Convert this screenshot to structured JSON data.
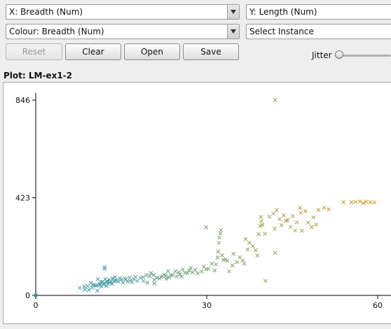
{
  "controls": {
    "x_axis_select": "X: Breadth (Num)",
    "y_axis_select": "Y: Length (Num)",
    "colour_select": "Colour: Breadth (Num)",
    "instance_select": "Select Instance",
    "reset_label": "Reset",
    "clear_label": "Clear",
    "open_label": "Open",
    "save_label": "Save",
    "jitter_label": "Jitter",
    "jitter_value": 0
  },
  "plot_title": "Plot: LM-ex1-2",
  "colors": {
    "low": "#2a9fc6",
    "high": "#d4a020"
  },
  "chart_data": {
    "type": "scatter",
    "xlim": [
      0,
      60
    ],
    "ylim": [
      0,
      846
    ],
    "x_ticks": [
      "0",
      "30",
      "60"
    ],
    "y_ticks": [
      "0",
      "423",
      "846"
    ],
    "marker": "x",
    "points": [
      [
        0,
        0
      ],
      [
        7.7,
        32
      ],
      [
        8.5,
        38
      ],
      [
        8.6,
        25
      ],
      [
        9.1,
        40
      ],
      [
        9.3,
        24
      ],
      [
        9.7,
        55
      ],
      [
        9.9,
        34
      ],
      [
        10,
        45
      ],
      [
        10.3,
        44
      ],
      [
        10.6,
        42
      ],
      [
        10.8,
        20
      ],
      [
        10.9,
        70
      ],
      [
        10.9,
        44
      ],
      [
        11.2,
        54
      ],
      [
        11.3,
        47
      ],
      [
        11.5,
        38
      ],
      [
        11.6,
        57
      ],
      [
        11.7,
        60
      ],
      [
        11.9,
        46
      ],
      [
        12,
        53
      ],
      [
        12.1,
        123
      ],
      [
        12.1,
        115
      ],
      [
        12.2,
        70
      ],
      [
        12.4,
        40
      ],
      [
        12.5,
        62
      ],
      [
        12.6,
        58
      ],
      [
        12.7,
        51
      ],
      [
        12.9,
        68
      ],
      [
        13,
        55
      ],
      [
        13.2,
        61
      ],
      [
        13.4,
        50
      ],
      [
        13.5,
        74
      ],
      [
        13.7,
        62
      ],
      [
        13.9,
        80
      ],
      [
        14,
        63
      ],
      [
        14.2,
        66
      ],
      [
        14.5,
        60
      ],
      [
        14.8,
        75
      ],
      [
        15,
        68
      ],
      [
        15.3,
        55
      ],
      [
        15.6,
        73
      ],
      [
        15.8,
        70
      ],
      [
        16.1,
        60
      ],
      [
        16.5,
        77
      ],
      [
        16.6,
        63
      ],
      [
        16.9,
        57
      ],
      [
        17.2,
        71
      ],
      [
        17.5,
        79
      ],
      [
        17.8,
        62
      ],
      [
        18.4,
        76
      ],
      [
        18.8,
        79
      ],
      [
        18.9,
        62
      ],
      [
        19.4,
        88
      ],
      [
        19.6,
        55
      ],
      [
        20,
        83
      ],
      [
        20.2,
        97
      ],
      [
        20.7,
        88
      ],
      [
        20.8,
        68
      ],
      [
        20.8,
        52
      ],
      [
        21.3,
        77
      ],
      [
        21.7,
        73
      ],
      [
        22,
        79
      ],
      [
        22.2,
        83
      ],
      [
        22.5,
        90
      ],
      [
        22.8,
        86
      ],
      [
        22.9,
        72
      ],
      [
        23.2,
        105
      ],
      [
        23.4,
        78
      ],
      [
        23.7,
        87
      ],
      [
        24,
        88
      ],
      [
        24.5,
        104
      ],
      [
        24.7,
        82
      ],
      [
        25.1,
        101
      ],
      [
        25.3,
        91
      ],
      [
        25.6,
        81
      ],
      [
        25.8,
        112
      ],
      [
        26.2,
        98
      ],
      [
        26.6,
        97
      ],
      [
        26.9,
        107
      ],
      [
        27.2,
        119
      ],
      [
        27.5,
        100
      ],
      [
        28,
        111
      ],
      [
        28.4,
        96
      ],
      [
        29.1,
        104
      ],
      [
        29.5,
        124
      ],
      [
        29.9,
        113
      ],
      [
        29.9,
        295
      ],
      [
        30.3,
        115
      ],
      [
        30.9,
        138
      ],
      [
        31.4,
        108
      ],
      [
        31.6,
        134
      ],
      [
        31.9,
        164
      ],
      [
        32,
        190
      ],
      [
        32.1,
        228
      ],
      [
        32.2,
        250
      ],
      [
        32.4,
        268
      ],
      [
        32.5,
        283
      ],
      [
        32.7,
        174
      ],
      [
        32.9,
        154
      ],
      [
        33.3,
        155
      ],
      [
        33.6,
        150
      ],
      [
        33.9,
        104
      ],
      [
        34.5,
        130
      ],
      [
        34.7,
        180
      ],
      [
        35.3,
        144
      ],
      [
        35.8,
        165
      ],
      [
        36.3,
        151
      ],
      [
        36.6,
        137
      ],
      [
        36.8,
        244
      ],
      [
        37.2,
        199
      ],
      [
        37.5,
        228
      ],
      [
        38.1,
        213
      ],
      [
        38.6,
        196
      ],
      [
        38.9,
        173
      ],
      [
        39.1,
        265
      ],
      [
        39.4,
        301
      ],
      [
        39.5,
        340
      ],
      [
        39.6,
        322
      ],
      [
        39.8,
        306
      ],
      [
        40.2,
        267
      ],
      [
        40.3,
        63
      ],
      [
        41,
        341
      ],
      [
        41.7,
        355
      ],
      [
        41.9,
        289
      ],
      [
        42,
        185
      ],
      [
        42,
        846
      ],
      [
        42.3,
        370
      ],
      [
        42.8,
        330
      ],
      [
        43.1,
        304
      ],
      [
        43.5,
        347
      ],
      [
        43.9,
        323
      ],
      [
        44.2,
        326
      ],
      [
        44.7,
        297
      ],
      [
        45.1,
        344
      ],
      [
        45.5,
        281
      ],
      [
        45.8,
        317
      ],
      [
        46.4,
        379
      ],
      [
        46.5,
        358
      ],
      [
        46.7,
        280
      ],
      [
        47.3,
        365
      ],
      [
        47.8,
        315
      ],
      [
        48.4,
        296
      ],
      [
        48.7,
        338
      ],
      [
        49.2,
        307
      ],
      [
        49.6,
        370
      ],
      [
        50.6,
        380
      ],
      [
        51.4,
        373
      ],
      [
        54,
        404
      ],
      [
        55.4,
        404
      ],
      [
        56.1,
        405
      ],
      [
        56.9,
        407
      ],
      [
        57.5,
        400
      ],
      [
        58,
        406
      ],
      [
        58.7,
        404
      ],
      [
        59.4,
        403
      ]
    ]
  }
}
